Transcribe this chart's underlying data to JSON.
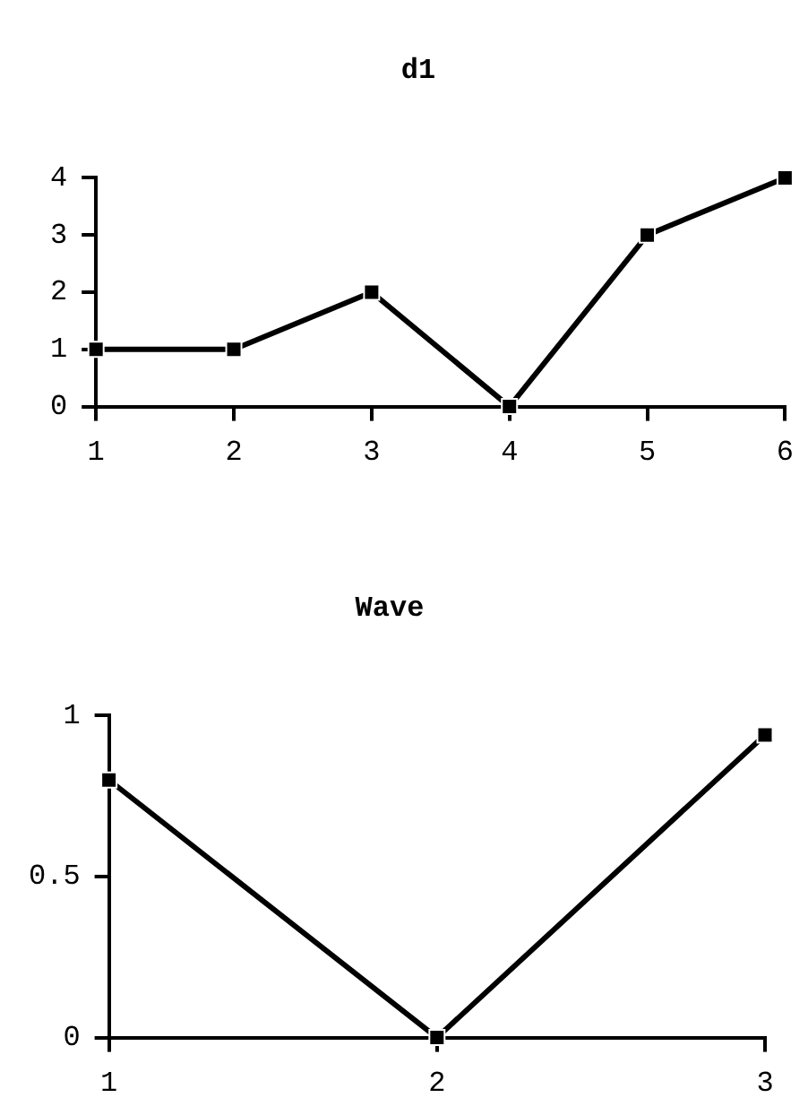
{
  "chart_data": [
    {
      "type": "line",
      "title": "d1",
      "x": [
        1,
        2,
        3,
        4,
        5,
        6
      ],
      "values": [
        1,
        1,
        2,
        0,
        3,
        4
      ],
      "color": "#000000",
      "marker": "square",
      "xlim": [
        1,
        6
      ],
      "xticks": [
        1,
        2,
        3,
        4,
        5,
        6
      ],
      "ylim": [
        0,
        4
      ],
      "yticks": [
        0,
        1,
        2,
        3,
        4
      ]
    },
    {
      "type": "line",
      "title": "Wave",
      "x": [
        1,
        2,
        3
      ],
      "values": [
        0.8,
        0,
        0.94
      ],
      "color": "#000000",
      "marker": "square",
      "xlim": [
        1,
        3
      ],
      "xticks": [
        1,
        2,
        3
      ],
      "ylim": [
        0,
        1
      ],
      "yticks": [
        0,
        {
          "value": 0.5,
          "label": "0.5"
        },
        1
      ]
    }
  ]
}
